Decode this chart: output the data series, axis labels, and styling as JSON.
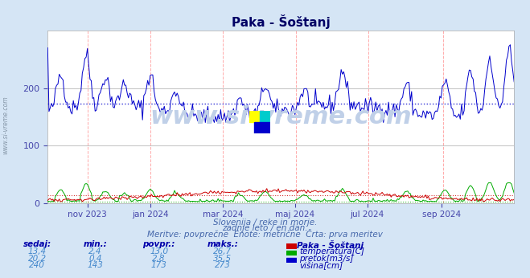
{
  "title": "Paka - Šoštanj",
  "bg_color": "#d5e5f5",
  "plot_bg_color": "#ffffff",
  "grid_color_h": "#aaaaaa",
  "grid_color_v": "#ffaaaa",
  "ylabel_color": "#4444aa",
  "xlabel_color": "#4444aa",
  "title_color": "#000066",
  "text_color": "#4466aa",
  "watermark": "www.si-vreme.com",
  "subtitle1": "Slovenija / reke in morje.",
  "subtitle2": "zadnje leto / en dan.",
  "subtitle3": "Meritve: povprečne  Enote: metrične  Črta: prva meritev",
  "ylim": [
    0,
    300
  ],
  "yticks": [
    0,
    100,
    200
  ],
  "num_points": 365,
  "temp_color": "#cc0000",
  "flow_color": "#00aa00",
  "height_color": "#0000cc",
  "temp_avg_line": 13.0,
  "flow_avg_line": 2.8,
  "height_avg_line": 173,
  "temp_dotted_color": "#cc0000",
  "flow_dotted_color": "#00aa00",
  "height_dotted_color": "#0000cc",
  "x_tick_labels": [
    "nov 2023",
    "jan 2024",
    "mar 2024",
    "maj 2024",
    "jul 2024",
    "sep 2024"
  ],
  "x_tick_positions": [
    0.085,
    0.22,
    0.375,
    0.53,
    0.685,
    0.845
  ],
  "table_headers": [
    "sedaj:",
    "min.:",
    "povpr.:",
    "maks.:"
  ],
  "table_row1": [
    "13,4",
    "2,4",
    "13,0",
    "26,7"
  ],
  "table_row2": [
    "20,2",
    "0,4",
    "2,8",
    "35,5"
  ],
  "table_row3": [
    "240",
    "143",
    "173",
    "273"
  ],
  "legend_title": "Paka - Šoštanj",
  "legend_items": [
    "temperatura[C]",
    "pretok[m3/s]",
    "višina[cm]"
  ],
  "legend_colors": [
    "#cc0000",
    "#00aa00",
    "#0000cc"
  ],
  "watermark_color": "#c0d0e8",
  "logo_colors": [
    "#ffff00",
    "#00cccc",
    "#0000cc"
  ]
}
